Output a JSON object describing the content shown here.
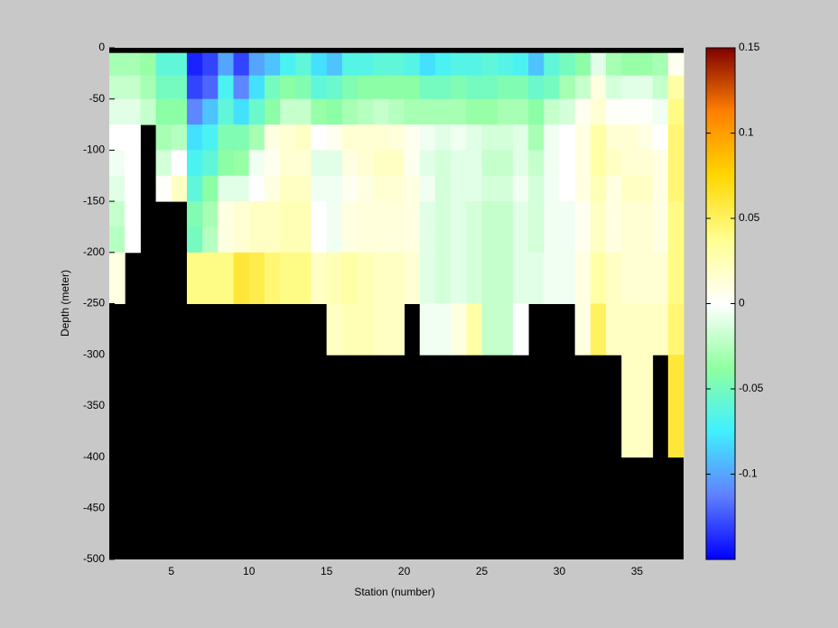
{
  "chart_data": {
    "type": "heatmap",
    "xlabel": "Station (number)",
    "ylabel": "Depth (meter)",
    "x": [
      1,
      2,
      3,
      4,
      5,
      6,
      7,
      8,
      9,
      10,
      11,
      12,
      13,
      14,
      15,
      16,
      17,
      18,
      19,
      20,
      21,
      22,
      23,
      24,
      25,
      26,
      27,
      28,
      29,
      30,
      31,
      32,
      33,
      34,
      35,
      36,
      37,
      38
    ],
    "y": [
      -5,
      -27,
      -50,
      -75,
      -100,
      -125,
      -150,
      -175,
      -200,
      -250,
      -300,
      -400
    ],
    "values": [
      [
        -0.03,
        -0.03,
        -0.035,
        -0.06,
        -0.06,
        -0.14,
        -0.13,
        -0.1,
        -0.13,
        -0.1,
        -0.09,
        -0.07,
        -0.06,
        -0.08,
        -0.09,
        -0.065,
        -0.065,
        -0.06,
        -0.06,
        -0.065,
        -0.08,
        -0.07,
        -0.065,
        -0.065,
        -0.06,
        -0.065,
        -0.07,
        -0.09,
        -0.06,
        -0.05,
        -0.04,
        -0.01,
        -0.03,
        -0.035,
        -0.035,
        -0.03,
        0.005
      ],
      [
        -0.02,
        -0.02,
        -0.03,
        -0.05,
        -0.05,
        -0.13,
        -0.12,
        -0.07,
        -0.11,
        -0.08,
        -0.05,
        -0.04,
        -0.045,
        -0.06,
        -0.055,
        -0.045,
        -0.04,
        -0.04,
        -0.04,
        -0.04,
        -0.05,
        -0.05,
        -0.045,
        -0.05,
        -0.05,
        -0.045,
        -0.045,
        -0.055,
        -0.05,
        -0.03,
        -0.02,
        0.01,
        -0.015,
        -0.01,
        -0.01,
        -0.02,
        0.03
      ],
      [
        -0.01,
        -0.01,
        -0.02,
        -0.04,
        -0.04,
        -0.11,
        -0.09,
        -0.06,
        -0.08,
        -0.055,
        -0.04,
        -0.02,
        -0.02,
        -0.035,
        -0.04,
        -0.03,
        -0.025,
        -0.02,
        -0.025,
        -0.03,
        -0.03,
        -0.03,
        -0.03,
        -0.035,
        -0.035,
        -0.03,
        -0.03,
        -0.04,
        -0.02,
        -0.015,
        0.005,
        0.015,
        0.002,
        0.002,
        0.002,
        -0.005,
        0.04
      ],
      [
        0,
        0,
        null,
        -0.03,
        -0.025,
        -0.08,
        -0.07,
        -0.045,
        -0.045,
        -0.03,
        0.01,
        0.015,
        0.02,
        0,
        0.005,
        0.015,
        0.015,
        0.015,
        0.012,
        0.005,
        -0.005,
        -0.01,
        -0.005,
        -0.01,
        -0.015,
        -0.015,
        -0.01,
        -0.03,
        -0.005,
        0,
        0.01,
        0.03,
        0.015,
        0.015,
        0.01,
        0,
        0.045
      ],
      [
        -0.005,
        0,
        null,
        -0.015,
        0,
        -0.07,
        -0.06,
        -0.04,
        -0.035,
        -0.005,
        0.005,
        0.015,
        0.015,
        -0.01,
        -0.01,
        0.01,
        0.015,
        0.02,
        0.02,
        0.005,
        -0.01,
        -0.015,
        -0.01,
        -0.01,
        -0.02,
        -0.02,
        -0.01,
        -0.02,
        -0.005,
        0,
        0.01,
        0.03,
        0.02,
        0.015,
        0.015,
        0.01,
        0.045
      ],
      [
        -0.01,
        0,
        null,
        0.002,
        0.02,
        -0.06,
        -0.04,
        -0.01,
        -0.01,
        0,
        0.01,
        0.02,
        0.02,
        -0.005,
        -0.005,
        0.005,
        0.01,
        0.015,
        0.015,
        0.01,
        -0.005,
        -0.015,
        -0.01,
        -0.01,
        -0.015,
        -0.015,
        -0.005,
        -0.015,
        -0.005,
        0,
        0.01,
        0.025,
        0.01,
        0.02,
        0.02,
        0.01,
        0.045
      ],
      [
        -0.02,
        0,
        null,
        null,
        null,
        -0.045,
        -0.03,
        0.01,
        0.015,
        0.02,
        0.02,
        0.025,
        0.025,
        0,
        -0.005,
        0.01,
        0.012,
        0.012,
        0.012,
        0.01,
        -0.01,
        -0.015,
        -0.01,
        -0.015,
        -0.02,
        -0.02,
        -0.01,
        -0.015,
        -0.005,
        -0.005,
        0.005,
        0.02,
        0.01,
        0.015,
        0.015,
        0.01,
        0.04
      ],
      [
        -0.025,
        0,
        null,
        null,
        null,
        -0.05,
        -0.025,
        0.01,
        0.015,
        0.02,
        0.02,
        0.025,
        0.025,
        0,
        -0.005,
        0.01,
        0.012,
        0.012,
        0.012,
        0.01,
        -0.01,
        -0.015,
        -0.01,
        -0.015,
        -0.02,
        -0.02,
        -0.01,
        -0.015,
        -0.005,
        -0.005,
        0.005,
        0.02,
        0.01,
        0.015,
        0.015,
        0.01,
        0.04
      ],
      [
        0.01,
        null,
        null,
        null,
        null,
        0.04,
        0.04,
        0.04,
        0.06,
        0.055,
        0.045,
        0.04,
        0.04,
        0.02,
        0.025,
        0.03,
        0.025,
        0.02,
        0.02,
        0.015,
        -0.01,
        -0.015,
        -0.01,
        -0.015,
        -0.02,
        -0.02,
        -0.01,
        -0.01,
        -0.005,
        -0.005,
        0.01,
        0.03,
        0.02,
        0.015,
        0.015,
        0.015,
        0.04
      ],
      [
        null,
        null,
        null,
        null,
        null,
        null,
        null,
        null,
        null,
        null,
        null,
        null,
        null,
        null,
        0.02,
        0.025,
        0.025,
        0.02,
        0.02,
        null,
        -0.005,
        -0.005,
        0.01,
        0.03,
        -0.02,
        -0.02,
        0,
        null,
        null,
        null,
        0.01,
        0.05,
        0.02,
        0.02,
        0.02,
        0.02,
        0.045
      ],
      [
        null,
        null,
        null,
        null,
        null,
        null,
        null,
        null,
        null,
        null,
        null,
        null,
        null,
        null,
        null,
        null,
        null,
        null,
        null,
        null,
        null,
        null,
        null,
        null,
        null,
        null,
        null,
        null,
        null,
        null,
        null,
        null,
        null,
        0.02,
        0.02,
        null,
        0.06
      ]
    ],
    "xlim": [
      1,
      38
    ],
    "ylim": [
      -500,
      0
    ],
    "xticks": [
      5,
      10,
      15,
      20,
      25,
      30,
      35
    ],
    "yticks": [
      0,
      -50,
      -100,
      -150,
      -200,
      -250,
      -300,
      -350,
      -400,
      -450,
      -500
    ],
    "clim": [
      -0.15,
      0.15
    ],
    "cticks": [
      0.15,
      0.1,
      0.05,
      0,
      -0.05,
      -0.1
    ],
    "colormap": [
      "#0000ff",
      "#6080ff",
      "#40f0ff",
      "#90ffa0",
      "#ffffff",
      "#ffff90",
      "#ffd700",
      "#ff8000",
      "#800000"
    ]
  }
}
